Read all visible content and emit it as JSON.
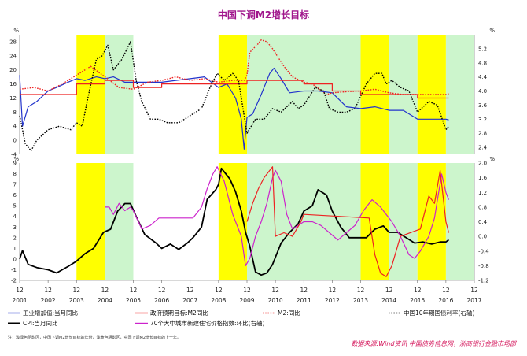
{
  "title": "中国下调M2增长目标",
  "footnote": "注：浅绿色阴影区，中国下调M2增长目标的年份，浅黄色阴影区，中国下调M2增长目标的上一年。",
  "source": "数据来源:Wind资讯 中国债券信息网，浙商银行金融市场部",
  "colors": {
    "yellow_band": "#ffff00",
    "green_band": "#ccf5cc",
    "industry": "#2233cc",
    "m2_target": "#ee2222",
    "m2": "#ee2222",
    "bond10y": "#000000",
    "cpi": "#000000",
    "housing": "#cc22cc"
  },
  "chart_data": [
    {
      "type": "line",
      "panel": "top",
      "left_unit": "%",
      "right_unit": "%",
      "left_ylim": [
        -4,
        30
      ],
      "left_ticks": [
        -4,
        0,
        4,
        8,
        12,
        16,
        20,
        24,
        28
      ],
      "right_ylim": [
        2.2,
        5.6
      ],
      "right_ticks": [
        "2.4",
        "2.8",
        "3.2",
        "3.6",
        "4.0",
        "4.4",
        "4.8",
        "5.2"
      ],
      "shaded_years": {
        "yellow": [
          [
            2003.0,
            2004.0
          ],
          [
            2008.0,
            2009.0
          ],
          [
            2013.0,
            2014.0
          ],
          [
            2015.0,
            2016.0
          ]
        ],
        "green": [
          [
            2004.0,
            2005.0
          ],
          [
            2009.0,
            2013.0
          ],
          [
            2014.0,
            2015.0
          ],
          [
            2016.0,
            2017.0
          ]
        ]
      },
      "series": [
        {
          "name": "工业增加值:当月同比",
          "axis": "left",
          "style": "solid",
          "color_key": "industry",
          "x": [
            2001.0,
            2001.1,
            2001.3,
            2001.6,
            2002.0,
            2002.3,
            2002.7,
            2003.0,
            2003.3,
            2003.7,
            2004.0,
            2004.3,
            2004.7,
            2005.0,
            2005.5,
            2006.0,
            2006.5,
            2007.0,
            2007.5,
            2008.0,
            2008.3,
            2008.6,
            2008.8,
            2008.9,
            2009.0,
            2009.2,
            2009.5,
            2009.8,
            2009.95,
            2010.2,
            2010.5,
            2011.0,
            2011.5,
            2012.0,
            2012.5,
            2013.0,
            2013.5,
            2014.0,
            2014.5,
            2015.0,
            2015.5,
            2016.0,
            2016.1
          ],
          "y": [
            18.5,
            4.0,
            9.5,
            11.0,
            14.0,
            15.0,
            16.5,
            17.5,
            17.0,
            18.0,
            17.5,
            18.0,
            16.5,
            16.5,
            16.5,
            16.5,
            17.0,
            17.5,
            18.0,
            15.0,
            16.0,
            12.0,
            6.0,
            -2.5,
            6.5,
            7.5,
            13.0,
            19.0,
            20.5,
            17.5,
            13.5,
            14.0,
            14.0,
            13.5,
            9.5,
            9.0,
            9.5,
            8.5,
            8.5,
            6.0,
            6.0,
            6.0,
            5.8
          ]
        },
        {
          "name": "政府预期目标:M2同比",
          "axis": "left",
          "style": "solid",
          "color_key": "m2_target",
          "x": [
            2001.0,
            2003.0,
            2003.0,
            2004.0,
            2004.0,
            2005.0,
            2005.0,
            2006.0,
            2006.0,
            2008.0,
            2008.0,
            2009.0,
            2009.0,
            2010.0,
            2010.0,
            2011.0,
            2011.0,
            2012.0,
            2012.0,
            2013.0,
            2013.0,
            2014.0,
            2014.0,
            2015.0,
            2015.0,
            2016.0,
            2016.0,
            2016.1
          ],
          "y": [
            13,
            13,
            16,
            16,
            17,
            17,
            15,
            15,
            16,
            16,
            16,
            16,
            17,
            17,
            17,
            17,
            16,
            16,
            14,
            14,
            13,
            13,
            13,
            13,
            12,
            12,
            12,
            12
          ]
        },
        {
          "name": "M2:同比",
          "axis": "left",
          "style": "dotted",
          "color_key": "m2",
          "x": [
            2001.0,
            2001.5,
            2002.0,
            2002.5,
            2003.0,
            2003.5,
            2004.0,
            2004.5,
            2005.0,
            2005.5,
            2006.0,
            2006.5,
            2007.0,
            2007.5,
            2008.0,
            2008.5,
            2008.9,
            2009.0,
            2009.1,
            2009.4,
            2009.5,
            2009.7,
            2009.9,
            2010.3,
            2010.6,
            2011.0,
            2011.3,
            2011.8,
            2012.0,
            2012.5,
            2013.0,
            2013.5,
            2014.0,
            2014.5,
            2015.0,
            2015.5,
            2016.0,
            2016.1
          ],
          "y": [
            14.5,
            15.0,
            14.0,
            16.0,
            18.5,
            21.0,
            18.0,
            15.0,
            14.5,
            16.5,
            17.0,
            18.0,
            17.0,
            17.5,
            16.5,
            17.0,
            17.0,
            18.5,
            25.0,
            27.5,
            28.5,
            28.0,
            26.0,
            21.0,
            18.0,
            16.5,
            16.0,
            13.0,
            13.5,
            13.8,
            14.0,
            14.5,
            13.5,
            13.0,
            13.0,
            13.0,
            13.0,
            13.2
          ]
        },
        {
          "name": "中国10年期国债利率(右轴)",
          "axis": "right",
          "style": "dotted",
          "color_key": "bond10y",
          "x": [
            2001.0,
            2001.2,
            2001.4,
            2001.6,
            2002.0,
            2002.4,
            2002.8,
            2003.0,
            2003.2,
            2003.4,
            2003.7,
            2003.9,
            2004.1,
            2004.3,
            2004.6,
            2004.9,
            2005.1,
            2005.3,
            2005.6,
            2005.9,
            2006.2,
            2006.6,
            2007.0,
            2007.4,
            2007.7,
            2007.95,
            2008.2,
            2008.5,
            2008.7,
            2008.9,
            2009.0,
            2009.3,
            2009.6,
            2009.9,
            2010.2,
            2010.6,
            2010.8,
            2011.0,
            2011.4,
            2011.7,
            2011.9,
            2012.2,
            2012.5,
            2012.8,
            2013.2,
            2013.5,
            2013.75,
            2013.9,
            2014.1,
            2014.4,
            2014.7,
            2015.0,
            2015.4,
            2015.7,
            2016.0,
            2016.1
          ],
          "y": [
            3.3,
            2.5,
            2.3,
            2.6,
            2.9,
            3.0,
            2.9,
            3.1,
            3.0,
            3.8,
            4.9,
            5.0,
            5.3,
            4.6,
            4.9,
            5.4,
            4.3,
            3.7,
            3.2,
            3.2,
            3.1,
            3.1,
            3.3,
            3.5,
            4.1,
            4.5,
            4.3,
            4.5,
            4.3,
            3.3,
            2.8,
            3.2,
            3.2,
            3.5,
            3.4,
            3.7,
            3.5,
            3.6,
            4.1,
            4.0,
            3.5,
            3.4,
            3.4,
            3.5,
            4.2,
            4.5,
            4.5,
            4.2,
            4.3,
            4.1,
            4.0,
            3.4,
            3.7,
            3.6,
            2.9,
            3.0
          ]
        }
      ]
    },
    {
      "type": "line",
      "panel": "bottom",
      "left_unit": "%",
      "right_unit": "%",
      "left_ylim": [
        -2,
        9
      ],
      "left_ticks": [
        -2,
        -1,
        0,
        1,
        2,
        3,
        4,
        5,
        6,
        7,
        8,
        9
      ],
      "right_ylim": [
        -1.2,
        2.0
      ],
      "right_ticks": [
        "-1.2",
        "-0.8",
        "-0.4",
        "0.0",
        "0.4",
        "0.8",
        "1.2",
        "1.6",
        "2.0"
      ],
      "x_ticks": [
        {
          "year": 2001,
          "month": "12",
          "label": "2001"
        },
        {
          "year": 2002,
          "month": "12",
          "label": "2002"
        },
        {
          "year": 2003,
          "month": "12",
          "label": "2003"
        },
        {
          "year": 2004,
          "month": "12",
          "label": "2004"
        },
        {
          "year": 2005,
          "month": "12",
          "label": "2005"
        },
        {
          "year": 2006,
          "month": "12",
          "label": "2006"
        },
        {
          "year": 2007,
          "month": "12",
          "label": "2007"
        },
        {
          "year": 2008,
          "month": "12",
          "label": "2008"
        },
        {
          "year": 2009,
          "month": "12",
          "label": "2009"
        },
        {
          "year": 2010,
          "month": "12",
          "label": "2010"
        },
        {
          "year": 2011,
          "month": "12",
          "label": "2011"
        },
        {
          "year": 2012,
          "month": "12",
          "label": "2012"
        },
        {
          "year": 2013,
          "month": "12",
          "label": "2013"
        },
        {
          "year": 2014,
          "month": "12",
          "label": "2014"
        },
        {
          "year": 2015,
          "month": "12",
          "label": "2015"
        },
        {
          "year": 2016,
          "month": "12",
          "label": "2016"
        },
        {
          "year": 2017,
          "month": "12",
          "label": "2017"
        }
      ],
      "shaded_years": {
        "yellow": [
          [
            2003.0,
            2004.0
          ],
          [
            2008.0,
            2009.0
          ],
          [
            2013.0,
            2014.0
          ],
          [
            2015.0,
            2016.0
          ]
        ],
        "green": [
          [
            2004.0,
            2005.0
          ],
          [
            2009.0,
            2013.0
          ],
          [
            2014.0,
            2015.0
          ],
          [
            2016.0,
            2017.0
          ]
        ]
      },
      "series": [
        {
          "name": "CPI:当月同比",
          "axis": "left",
          "style": "solid",
          "color_key": "cpi",
          "x": [
            2001.0,
            2001.1,
            2001.3,
            2001.6,
            2002.0,
            2002.3,
            2002.7,
            2003.0,
            2003.3,
            2003.6,
            2003.95,
            2004.2,
            2004.45,
            2004.7,
            2004.9,
            2005.1,
            2005.4,
            2005.8,
            2006.0,
            2006.3,
            2006.6,
            2006.9,
            2007.1,
            2007.4,
            2007.6,
            2007.9,
            2008.0,
            2008.1,
            2008.25,
            2008.4,
            2008.6,
            2008.8,
            2008.95,
            2009.1,
            2009.3,
            2009.5,
            2009.7,
            2009.9,
            2010.2,
            2010.5,
            2010.8,
            2011.0,
            2011.3,
            2011.5,
            2011.8,
            2012.0,
            2012.3,
            2012.6,
            2012.9,
            2013.2,
            2013.5,
            2013.8,
            2014.0,
            2014.3,
            2014.6,
            2014.9,
            2015.2,
            2015.5,
            2015.8,
            2016.0,
            2016.1
          ],
          "y": [
            0.0,
            0.8,
            -0.5,
            -0.8,
            -1.0,
            -1.3,
            -0.7,
            -0.2,
            0.5,
            1.0,
            2.5,
            2.8,
            4.5,
            5.2,
            5.2,
            4.0,
            2.3,
            1.5,
            1.0,
            1.4,
            0.9,
            1.5,
            2.0,
            3.0,
            5.6,
            6.5,
            7.0,
            8.5,
            8.0,
            7.5,
            6.3,
            4.5,
            2.5,
            1.2,
            -1.2,
            -1.5,
            -1.3,
            -0.5,
            1.5,
            2.5,
            3.3,
            4.5,
            5.0,
            6.5,
            6.0,
            4.5,
            3.0,
            2.0,
            2.0,
            2.0,
            2.8,
            3.1,
            2.5,
            2.5,
            2.0,
            1.5,
            1.6,
            1.4,
            1.6,
            1.6,
            1.8
          ]
        },
        {
          "name": "70个大中城市新建住宅价格指数:环比(右轴)",
          "axis": "right",
          "style": "solid",
          "color_key": "housing",
          "x": [
            2004.0,
            2004.15,
            2004.3,
            2004.5,
            2004.7,
            2004.9,
            2005.0,
            2005.3,
            2005.6,
            2005.9,
            2006.2,
            2006.5,
            2006.8,
            2007.1,
            2007.4,
            2007.6,
            2007.8,
            2007.95,
            2008.2,
            2008.5,
            2008.8,
            2008.95,
            2009.1,
            2009.3,
            2009.5,
            2009.7,
            2009.9,
            2010.0,
            2010.2,
            2010.4,
            2010.6,
            2010.8,
            2011.0,
            2011.3,
            2011.6,
            2011.9,
            2012.2,
            2012.5,
            2012.8,
            2013.1,
            2013.4,
            2013.7,
            2013.9,
            2014.1,
            2014.4,
            2014.7,
            2014.9,
            2015.1,
            2015.4,
            2015.6,
            2015.85,
            2016.0,
            2016.1
          ],
          "y": [
            0.8,
            0.8,
            0.6,
            0.9,
            0.7,
            0.8,
            0.7,
            0.2,
            0.3,
            0.5,
            0.5,
            0.5,
            0.5,
            0.5,
            0.8,
            1.3,
            1.7,
            1.9,
            1.5,
            0.6,
            0.0,
            -0.8,
            -0.6,
            0.0,
            0.4,
            0.9,
            1.6,
            1.8,
            1.5,
            0.6,
            0.2,
            0.3,
            0.4,
            0.4,
            0.3,
            0.1,
            -0.1,
            0.1,
            0.3,
            0.7,
            1.0,
            0.8,
            0.6,
            0.4,
            0.0,
            -0.5,
            -0.6,
            -0.4,
            0.0,
            0.5,
            1.7,
            1.2,
            1.0
          ]
        },
        {
          "name": "",
          "axis": "right",
          "style": "solid",
          "color_key": "m2_target",
          "legend": false,
          "x": [
            2009.0,
            2009.2,
            2009.4,
            2009.6,
            2009.9,
            2010.0,
            2010.3,
            2010.6,
            2010.9,
            2011.0,
            2013.3,
            2013.5,
            2013.7,
            2013.9,
            2014.1,
            2014.4,
            2015.1,
            2015.4,
            2015.6,
            2015.8,
            2016.0,
            2016.1
          ],
          "y": [
            0.4,
            0.9,
            1.3,
            1.6,
            1.9,
            0.0,
            0.1,
            0.0,
            0.4,
            0.6,
            0.5,
            -0.5,
            -1.0,
            -1.1,
            -0.8,
            0.0,
            0.2,
            1.1,
            0.9,
            1.8,
            0.4,
            0.1
          ]
        }
      ]
    }
  ],
  "legend": {
    "row1": [
      "工业增加值:当月同比",
      "政府预期目标:M2同比",
      "M2:同比",
      "中国10年期国债利率(右轴)"
    ],
    "row2": [
      "CPI:当月同比",
      "70个大中城市新建住宅价格指数:环比(右轴)"
    ]
  }
}
